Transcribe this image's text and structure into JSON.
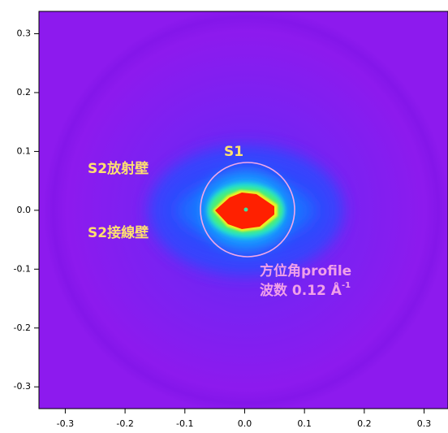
{
  "chart_data": {
    "type": "image",
    "xlim": [
      -0.344,
      0.34
    ],
    "ylim": [
      -0.337,
      0.338
    ],
    "xticks": [
      -0.3,
      -0.2,
      -0.1,
      {
        "value": 0,
        "label": "0.0"
      },
      0.1,
      0.2,
      0.3
    ],
    "yticks": [
      -0.3,
      -0.2,
      -0.1,
      {
        "value": 0,
        "label": "0.0"
      },
      0.1,
      0.2,
      0.3
    ],
    "annotations": [
      {
        "text": "S1",
        "color": "#ffe070"
      },
      {
        "text": "S2放射壁",
        "color": "#ffe070"
      },
      {
        "text": "S2接線壁",
        "color": "#ffe070"
      },
      {
        "text": "方位角profile",
        "color": "#f0a0e8"
      },
      {
        "text": "波数 0.12 Å",
        "sup": "-1",
        "color": "#f0a0e8"
      }
    ]
  }
}
